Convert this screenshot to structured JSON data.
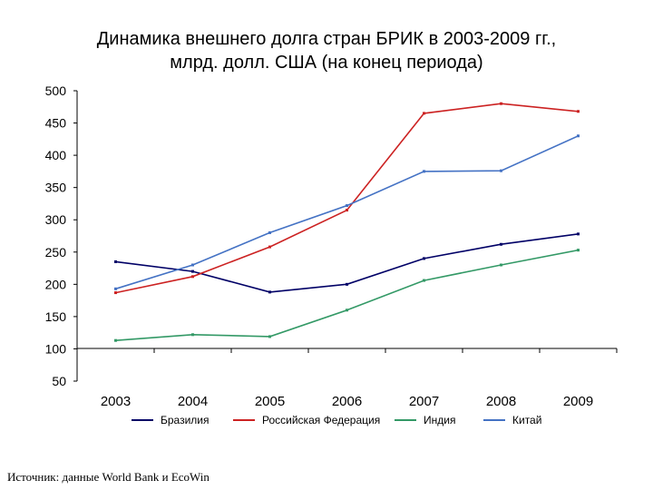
{
  "title_line1": "Динамика внешнего долга стран БРИК в 2003-2009 гг.,",
  "title_line2": "млрд. долл. США (на конец периода)",
  "source": "Источник: данные World Bank и EcoWin",
  "chart_data": {
    "type": "line",
    "title": "Динамика внешнего долга стран БРИК в 2003-2009 гг., млрд. долл. США (на конец периода)",
    "categories": [
      "2003",
      "2004",
      "2005",
      "2006",
      "2007",
      "2008",
      "2009"
    ],
    "ylim": [
      50,
      500
    ],
    "yticks": [
      "500",
      "450",
      "400",
      "350",
      "300",
      "250",
      "200",
      "150",
      "100",
      "50"
    ],
    "grid": false,
    "legend_position": "bottom",
    "series": [
      {
        "name": "Бразилия",
        "color": "#000066",
        "values": [
          235,
          220,
          188,
          200,
          240,
          262,
          278
        ]
      },
      {
        "name": "Российская Федерация",
        "color": "#cc2222",
        "values": [
          187,
          212,
          258,
          315,
          465,
          480,
          468
        ]
      },
      {
        "name": "Индия",
        "color": "#339966",
        "values": [
          113,
          122,
          119,
          160,
          206,
          230,
          253
        ]
      },
      {
        "name": "Китай",
        "color": "#4472c4",
        "values": [
          193,
          230,
          280,
          322,
          375,
          376,
          430
        ]
      }
    ]
  }
}
